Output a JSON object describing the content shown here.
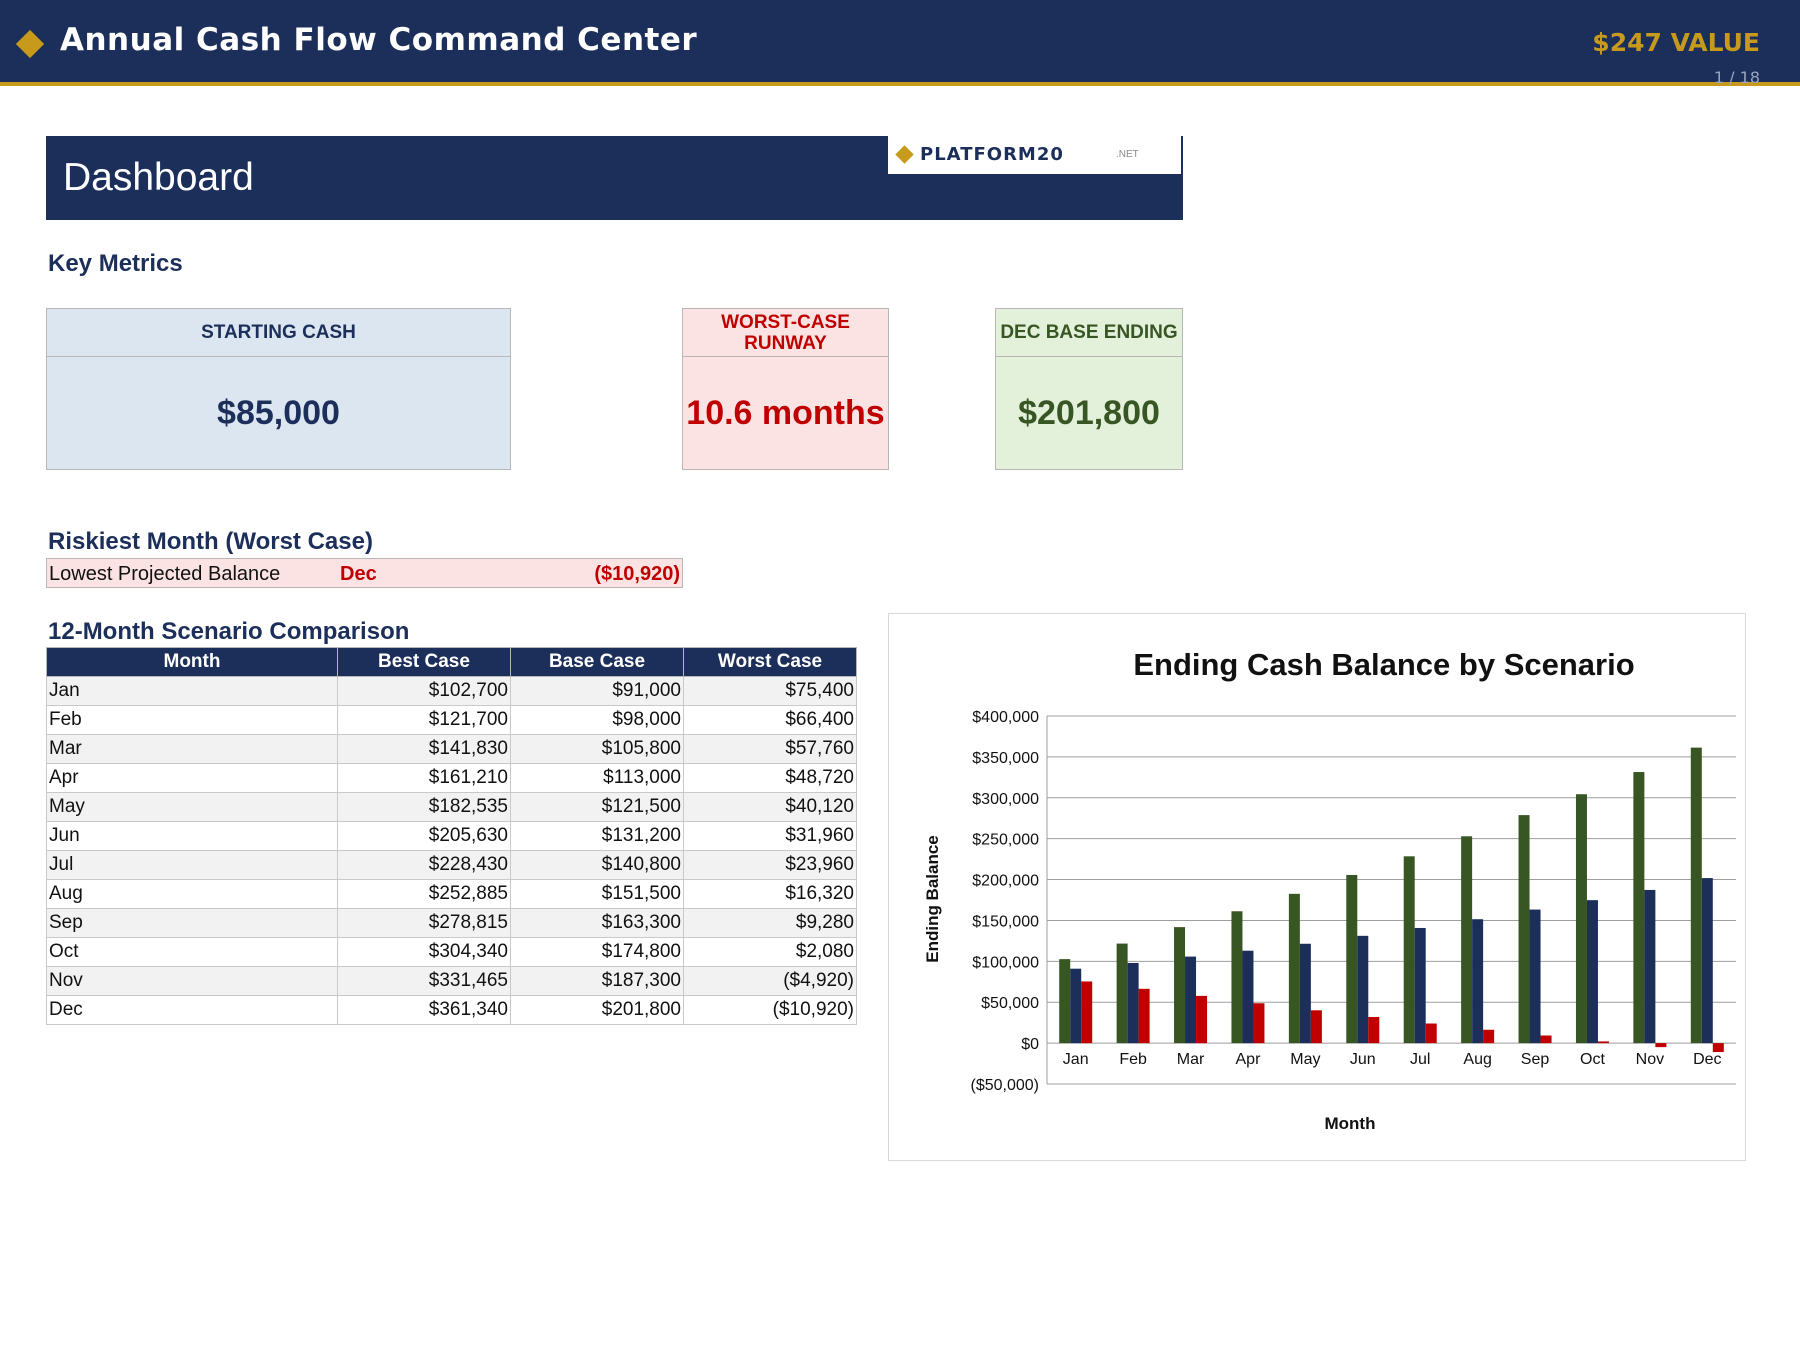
{
  "topbar": {
    "title": "Annual Cash Flow Command Center",
    "value_badge": "$247 VALUE",
    "pager": "1 / 18"
  },
  "sheet": {
    "title": "Dashboard",
    "logo": {
      "name": "PLATFORM20",
      "suffix": ".NET"
    }
  },
  "key_metrics": {
    "heading": "Key Metrics",
    "cards": [
      {
        "label": "STARTING CASH",
        "value": "$85,000",
        "color": "#1c2f5a"
      },
      {
        "label": "WORST-CASE RUNWAY",
        "value": "10.6 months",
        "color": "#c00000"
      },
      {
        "label": "DEC BASE ENDING",
        "value": "$201,800",
        "color": "#375623"
      }
    ]
  },
  "riskiest": {
    "heading": "Riskiest Month (Worst Case)",
    "label": "Lowest Projected Balance",
    "month": "Dec",
    "value": "($10,920)"
  },
  "comparison": {
    "heading": "12-Month Scenario Comparison",
    "columns": [
      "Month",
      "Best Case",
      "Base Case",
      "Worst Case"
    ],
    "rows": [
      [
        "Jan",
        "$102,700",
        "$91,000",
        "$75,400"
      ],
      [
        "Feb",
        "$121,700",
        "$98,000",
        "$66,400"
      ],
      [
        "Mar",
        "$141,830",
        "$105,800",
        "$57,760"
      ],
      [
        "Apr",
        "$161,210",
        "$113,000",
        "$48,720"
      ],
      [
        "May",
        "$182,535",
        "$121,500",
        "$40,120"
      ],
      [
        "Jun",
        "$205,630",
        "$131,200",
        "$31,960"
      ],
      [
        "Jul",
        "$228,430",
        "$140,800",
        "$23,960"
      ],
      [
        "Aug",
        "$252,885",
        "$151,500",
        "$16,320"
      ],
      [
        "Sep",
        "$278,815",
        "$163,300",
        "$9,280"
      ],
      [
        "Oct",
        "$304,340",
        "$174,800",
        "$2,080"
      ],
      [
        "Nov",
        "$331,465",
        "$187,300",
        "($4,920)"
      ],
      [
        "Dec",
        "$361,340",
        "$201,800",
        "($10,920)"
      ]
    ]
  },
  "chart_data": {
    "type": "bar",
    "title": "Ending Cash Balance by Scenario",
    "xlabel": "Month",
    "ylabel": "Ending Balance",
    "categories": [
      "Jan",
      "Feb",
      "Mar",
      "Apr",
      "May",
      "Jun",
      "Jul",
      "Aug",
      "Sep",
      "Oct",
      "Nov",
      "Dec"
    ],
    "ylim": [
      -50000,
      400000
    ],
    "yticks": [
      400000,
      350000,
      300000,
      250000,
      200000,
      150000,
      100000,
      50000,
      0,
      -50000
    ],
    "ytick_labels": [
      "$400,000",
      "$350,000",
      "$300,000",
      "$250,000",
      "$200,000",
      "$150,000",
      "$100,000",
      "$50,000",
      "$0",
      "($50,000)"
    ],
    "grid": true,
    "legend": "none",
    "series": [
      {
        "values": [
          102700,
          121700,
          141830,
          161210,
          182535,
          205630,
          228430,
          252885,
          278815,
          304340,
          331465,
          361340
        ],
        "color": "#375623"
      },
      {
        "values": [
          91000,
          98000,
          105800,
          113000,
          121500,
          131200,
          140800,
          151500,
          163300,
          174800,
          187300,
          201800
        ],
        "color": "#1c2f5a"
      },
      {
        "values": [
          75400,
          66400,
          57760,
          48720,
          40120,
          31960,
          23960,
          16320,
          9280,
          2080,
          -4920,
          -10920
        ],
        "color": "#c00000"
      }
    ]
  }
}
